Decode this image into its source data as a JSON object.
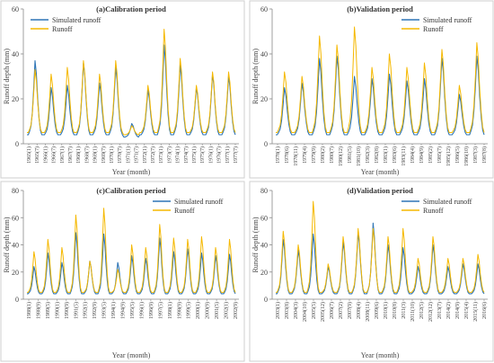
{
  "figure": {
    "accent_sim": "#2e75b6",
    "accent_run": "#f5b800",
    "frame": "#cfcfcf"
  },
  "chart_data": [
    {
      "type": "line",
      "title": "(a)Calibration period",
      "ylabel": "Runoff depth (mm)",
      "xlabel": "Year (month)",
      "ylim": [
        0,
        60
      ],
      "yticks": [
        0,
        20,
        40,
        60
      ],
      "legend": "top-left",
      "x_tick_labels": [
        "1965(1)",
        "1965(7)",
        "1966(1)",
        "1966(7)",
        "1967(1)",
        "1967(7)",
        "1968(1)",
        "1968(7)",
        "1969(1)",
        "1969(7)",
        "1970(1)",
        "1970(7)",
        "1971(1)",
        "1971(7)",
        "1972(1)",
        "1972(7)",
        "1973(1)",
        "1973(7)",
        "1974(1)",
        "1974(7)",
        "1975(1)",
        "1975(7)",
        "1976(1)",
        "1976(7)",
        "1977(1)",
        "1977(7)"
      ],
      "series": [
        {
          "name": "Simulated runoff",
          "color": "#2e75b6",
          "peaks": [
            37,
            25,
            26,
            36,
            27,
            34,
            9,
            24,
            44,
            35,
            25,
            31,
            30
          ],
          "base": [
            4,
            4,
            4,
            4,
            4,
            4,
            3,
            4,
            4,
            4,
            4,
            4,
            4
          ]
        },
        {
          "name": "Runoff",
          "color": "#f5b800",
          "peaks": [
            33,
            31,
            34,
            37,
            31,
            37,
            8,
            26,
            51,
            38,
            26,
            32,
            32
          ],
          "base": [
            5,
            5,
            5,
            5,
            5,
            5,
            4,
            5,
            5,
            5,
            5,
            5,
            5
          ]
        }
      ]
    },
    {
      "type": "line",
      "title": "(b)Validation period",
      "ylabel": "Runoff depth (mm)",
      "xlabel": "Year (month)",
      "ylim": [
        0,
        60
      ],
      "yticks": [
        0,
        20,
        40,
        60
      ],
      "legend": "top-right",
      "x_tick_labels": [
        "1978(1)",
        "1978(6)",
        "1978(11)",
        "1979(4)",
        "1979(9)",
        "1980(2)",
        "1980(7)",
        "1980(12)",
        "1981(5)",
        "1981(10)",
        "1982(3)",
        "1982(8)",
        "1983(1)",
        "1983(6)",
        "1983(11)",
        "1984(4)",
        "1984(9)",
        "1985(2)",
        "1985(7)",
        "1985(12)",
        "1986(5)",
        "1986(10)",
        "1987(3)",
        "1987(8)"
      ],
      "series": [
        {
          "name": "Simulated runoff",
          "color": "#2e75b6",
          "peaks": [
            25,
            27,
            38,
            39,
            30,
            29,
            31,
            28,
            29,
            38,
            22,
            39
          ],
          "base": [
            4,
            4,
            4,
            4,
            4,
            4,
            4,
            4,
            4,
            4,
            4,
            4
          ]
        },
        {
          "name": "Runoff",
          "color": "#f5b800",
          "peaks": [
            32,
            30,
            48,
            44,
            52,
            34,
            40,
            34,
            36,
            42,
            26,
            45
          ],
          "base": [
            5,
            5,
            5,
            5,
            5,
            5,
            5,
            5,
            5,
            5,
            5,
            5
          ]
        }
      ]
    },
    {
      "type": "line",
      "title": "(c)Calibration period",
      "ylabel": "Runoff depth (mm)",
      "xlabel": "Year (month)",
      "ylim": [
        0,
        80
      ],
      "yticks": [
        0,
        20,
        40,
        60,
        80
      ],
      "legend": "top-right",
      "x_tick_labels": [
        "1988(1)",
        "1988(9)",
        "1989(5)",
        "1990(1)",
        "1990(9)",
        "1991(5)",
        "1992(1)",
        "1992(9)",
        "1993(5)",
        "1994(1)",
        "1994(9)",
        "1995(5)",
        "1996(1)",
        "1996(9)",
        "1997(5)",
        "1998(1)",
        "1998(9)",
        "1999(5)",
        "2000(1)",
        "2000(9)",
        "2001(5)",
        "2002(1)",
        "2002(9)"
      ],
      "series": [
        {
          "name": "Simulated runoff",
          "color": "#2e75b6",
          "peaks": [
            24,
            34,
            27,
            49,
            28,
            48,
            27,
            32,
            30,
            45,
            35,
            37,
            34,
            32,
            33
          ],
          "base": [
            4,
            4,
            4,
            4,
            4,
            4,
            4,
            4,
            4,
            4,
            4,
            4,
            4,
            4,
            4
          ]
        },
        {
          "name": "Runoff",
          "color": "#f5b800",
          "peaks": [
            35,
            44,
            38,
            62,
            28,
            67,
            22,
            40,
            38,
            55,
            45,
            44,
            46,
            38,
            44
          ],
          "base": [
            5,
            5,
            5,
            5,
            5,
            5,
            5,
            5,
            5,
            5,
            5,
            5,
            5,
            5,
            5
          ]
        }
      ]
    },
    {
      "type": "line",
      "title": "(d)Validation period",
      "ylabel": "Runoff depth (mm)",
      "xlabel": "Year (month)",
      "ylim": [
        0,
        80
      ],
      "yticks": [
        0,
        20,
        40,
        60,
        80
      ],
      "legend": "top-right",
      "x_tick_labels": [
        "2003(1)",
        "2003(8)",
        "2004(3)",
        "2004(10)",
        "2005(5)",
        "2005(12)",
        "2006(7)",
        "2007(2)",
        "2007(9)",
        "2008(4)",
        "2008(11)",
        "2009(6)",
        "2010(1)",
        "2010(8)",
        "2011(3)",
        "2011(10)",
        "2012(5)",
        "2012(12)",
        "2013(7)",
        "2014(2)",
        "2014(9)",
        "2015(4)",
        "2015(11)",
        "2016(6)"
      ],
      "series": [
        {
          "name": "Simulated runoff",
          "color": "#2e75b6",
          "peaks": [
            44,
            36,
            48,
            24,
            42,
            49,
            56,
            40,
            38,
            24,
            40,
            24,
            26,
            26
          ],
          "base": [
            4,
            4,
            4,
            4,
            4,
            4,
            4,
            4,
            4,
            4,
            4,
            4,
            4,
            4
          ]
        },
        {
          "name": "Runoff",
          "color": "#f5b800",
          "peaks": [
            50,
            40,
            72,
            26,
            46,
            52,
            52,
            46,
            52,
            30,
            46,
            30,
            30,
            33
          ],
          "base": [
            5,
            5,
            5,
            5,
            5,
            5,
            5,
            5,
            5,
            5,
            5,
            5,
            5,
            5
          ]
        }
      ]
    }
  ]
}
